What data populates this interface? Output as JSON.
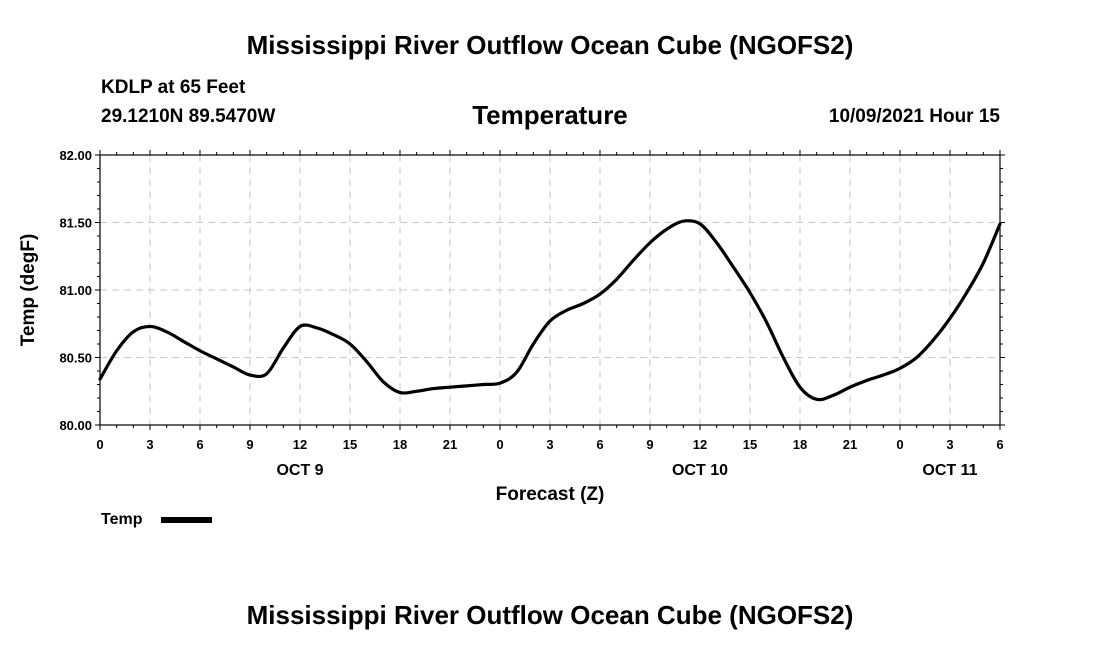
{
  "header": {
    "top_title": "Mississippi River Outflow Ocean Cube (NGOFS2)",
    "station_name": "KDLP at 65 Feet",
    "station_coords": "29.1210N  89.5470W",
    "chart_title": "Temperature",
    "datetime": "10/09/2021 Hour 15"
  },
  "footer": {
    "bottom_title": "Mississippi River Outflow Ocean Cube (NGOFS2)"
  },
  "chart_data": {
    "type": "line",
    "title": "Temperature",
    "xlabel": "Forecast (Z)",
    "ylabel": "Temp (degF)",
    "ylim": [
      80.0,
      82.0
    ],
    "yticks": [
      80.0,
      80.5,
      81.0,
      81.5,
      82.0
    ],
    "ytick_labels": [
      "80.00",
      "80.50",
      "81.00",
      "81.50",
      "82.00"
    ],
    "xlim": [
      0,
      54
    ],
    "xticks": [
      0,
      3,
      6,
      9,
      12,
      15,
      18,
      21,
      24,
      27,
      30,
      33,
      36,
      39,
      42,
      45,
      48,
      51,
      54
    ],
    "xtick_labels": [
      "0",
      "3",
      "6",
      "9",
      "12",
      "15",
      "18",
      "21",
      "0",
      "3",
      "6",
      "9",
      "12",
      "15",
      "18",
      "21",
      "0",
      "3",
      "6"
    ],
    "date_labels": [
      {
        "x": 12,
        "label": "OCT 9"
      },
      {
        "x": 36,
        "label": "OCT 10"
      },
      {
        "x": 51,
        "label": "OCT 11"
      }
    ],
    "grid": true,
    "series": [
      {
        "name": "Temp",
        "color": "#000000",
        "x": [
          0,
          1,
          2,
          3,
          4,
          5,
          6,
          7,
          8,
          9,
          10,
          11,
          12,
          13,
          14,
          15,
          16,
          17,
          18,
          19,
          20,
          21,
          22,
          23,
          24,
          25,
          26,
          27,
          28,
          29,
          30,
          31,
          32,
          33,
          34,
          35,
          36,
          37,
          38,
          39,
          40,
          41,
          42,
          43,
          44,
          45,
          46,
          47,
          48,
          49,
          50,
          51,
          52,
          53,
          54
        ],
        "values": [
          80.34,
          80.55,
          80.69,
          80.73,
          80.69,
          80.62,
          80.55,
          80.49,
          80.43,
          80.37,
          80.38,
          80.57,
          80.73,
          80.72,
          80.67,
          80.6,
          80.47,
          80.32,
          80.24,
          80.25,
          80.27,
          80.28,
          80.29,
          80.3,
          80.31,
          80.39,
          80.6,
          80.77,
          80.85,
          80.9,
          80.97,
          81.08,
          81.22,
          81.35,
          81.45,
          81.51,
          81.49,
          81.35,
          81.17,
          80.98,
          80.76,
          80.5,
          80.28,
          80.19,
          80.22,
          80.28,
          80.33,
          80.37,
          80.42,
          80.5,
          80.63,
          80.79,
          80.98,
          81.2,
          81.49
        ]
      }
    ],
    "legend": [
      {
        "label": "Temp",
        "position": "bottom-left"
      }
    ]
  }
}
